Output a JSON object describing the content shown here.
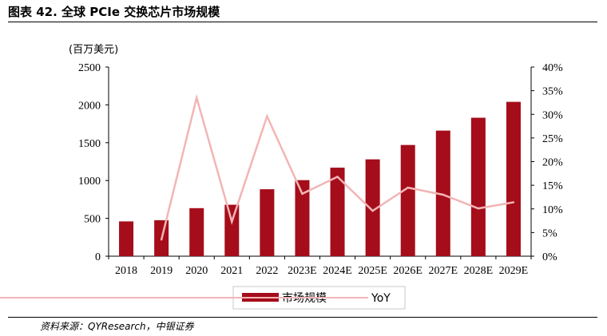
{
  "header": {
    "title": "图表 42.  全球 PCIe 交换芯片市场规模"
  },
  "footer": {
    "source": "资料来源：QYResearch，中银证券"
  },
  "chart_data": {
    "type": "bar",
    "title": "全球 PCIe 交换芯片市场规模",
    "ylabel": "(百万美元)",
    "xlabel": "",
    "categories": [
      "2018",
      "2019",
      "2020",
      "2021",
      "2022",
      "2023E",
      "2024E",
      "2025E",
      "2026E",
      "2027E",
      "2028E",
      "2029E"
    ],
    "series": [
      {
        "name": "市场规模",
        "type": "bar",
        "axis": "left",
        "color": "#A50D1A",
        "values": [
          460,
          475,
          635,
          680,
          885,
          1005,
          1170,
          1280,
          1470,
          1660,
          1830,
          2040
        ]
      },
      {
        "name": "YoY",
        "type": "line",
        "axis": "right",
        "color": "#F2B5B5",
        "values": [
          null,
          3.5,
          33.5,
          7.3,
          29.6,
          13.2,
          16.8,
          9.6,
          14.5,
          13.0,
          10.1,
          11.4
        ]
      }
    ],
    "ylim": [
      0,
      2500
    ],
    "yticks": [
      0,
      500,
      1000,
      1500,
      2000,
      2500
    ],
    "ylim_right": [
      0,
      40
    ],
    "yticks_right": [
      "0%",
      "5%",
      "10%",
      "15%",
      "20%",
      "25%",
      "30%",
      "35%",
      "40%"
    ],
    "grid": false,
    "legend": {
      "position": "bottom",
      "entries": [
        "市场规模",
        "YoY"
      ]
    }
  }
}
